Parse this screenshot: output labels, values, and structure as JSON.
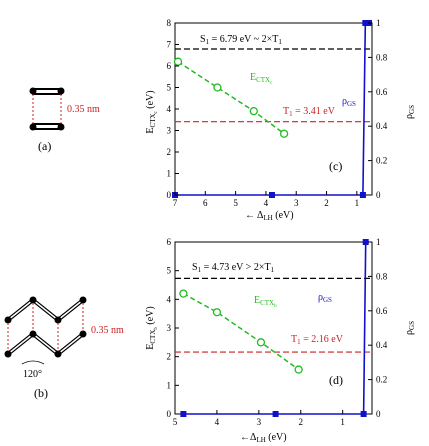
{
  "molecules": {
    "a": {
      "label": "(a)",
      "distance_label": "0.35 nm"
    },
    "b": {
      "label": "(b)",
      "distance_label": "0.35 nm",
      "angle_label": "120°"
    }
  },
  "colors": {
    "green": "#22bb22",
    "blue": "#1111cc",
    "red": "#cc2222",
    "black": "#000000"
  },
  "chart_data": [
    {
      "type": "line",
      "panel_label": "(c)",
      "xlabel": "← Δ_LH (eV)",
      "ylabel_left": "E_CTX_c (eV)",
      "ylabel_right": "ρ_GS",
      "xlim": [
        7,
        0.5
      ],
      "ylim_left": [
        0,
        8
      ],
      "ylim_right": [
        0,
        1
      ],
      "xticks": [
        7,
        6,
        5,
        4,
        3,
        2,
        1
      ],
      "yticks_left": [
        0,
        1,
        2,
        3,
        4,
        5,
        6,
        7,
        8
      ],
      "yticks_right": [
        0,
        0.2,
        0.4,
        0.6,
        0.8,
        1
      ],
      "hlines": [
        {
          "label": "S_1 = 6.79 eV ~ 2×T_1",
          "y": 6.79,
          "color": "#000000"
        },
        {
          "label": "T_1 = 3.41 eV",
          "y": 3.41,
          "color": "#cc2222"
        }
      ],
      "ectx_series": {
        "name": "E_CTX_c",
        "x": [
          6.9,
          5.6,
          4.4,
          3.4
        ],
        "y": [
          6.2,
          5.0,
          3.9,
          2.85
        ]
      },
      "rho_series": {
        "name": "ρ_GS",
        "x": [
          7.0,
          3.8,
          0.8,
          0.72,
          0.6
        ],
        "y": [
          0,
          0,
          0,
          1,
          1
        ]
      }
    },
    {
      "type": "line",
      "panel_label": "(d)",
      "xlabel": "← Δ_LH (eV)",
      "ylabel_left": "E_CTX_b (eV)",
      "ylabel_right": "ρ_GS",
      "xlim": [
        5,
        0.3
      ],
      "ylim_left": [
        0,
        6
      ],
      "ylim_right": [
        0,
        1
      ],
      "xticks": [
        5,
        4,
        3,
        2,
        1
      ],
      "yticks_left": [
        0,
        1,
        2,
        3,
        4,
        5,
        6
      ],
      "yticks_right": [
        0,
        0.2,
        0.4,
        0.6,
        0.8,
        1
      ],
      "hlines": [
        {
          "label": "S_1 = 4.73 eV > 2×T_1",
          "y": 4.73,
          "color": "#000000"
        },
        {
          "label": "T_1 = 2.16 eV",
          "y": 2.16,
          "color": "#cc2222"
        }
      ],
      "ectx_series": {
        "name": "E_CTX_b",
        "x": [
          4.8,
          4.0,
          2.95,
          2.05
        ],
        "y": [
          4.2,
          3.55,
          2.5,
          1.55
        ]
      },
      "rho_series": {
        "name": "ρ_GS",
        "x": [
          4.8,
          2.6,
          0.5,
          0.45
        ],
        "y": [
          0,
          0,
          0,
          1
        ]
      }
    }
  ]
}
